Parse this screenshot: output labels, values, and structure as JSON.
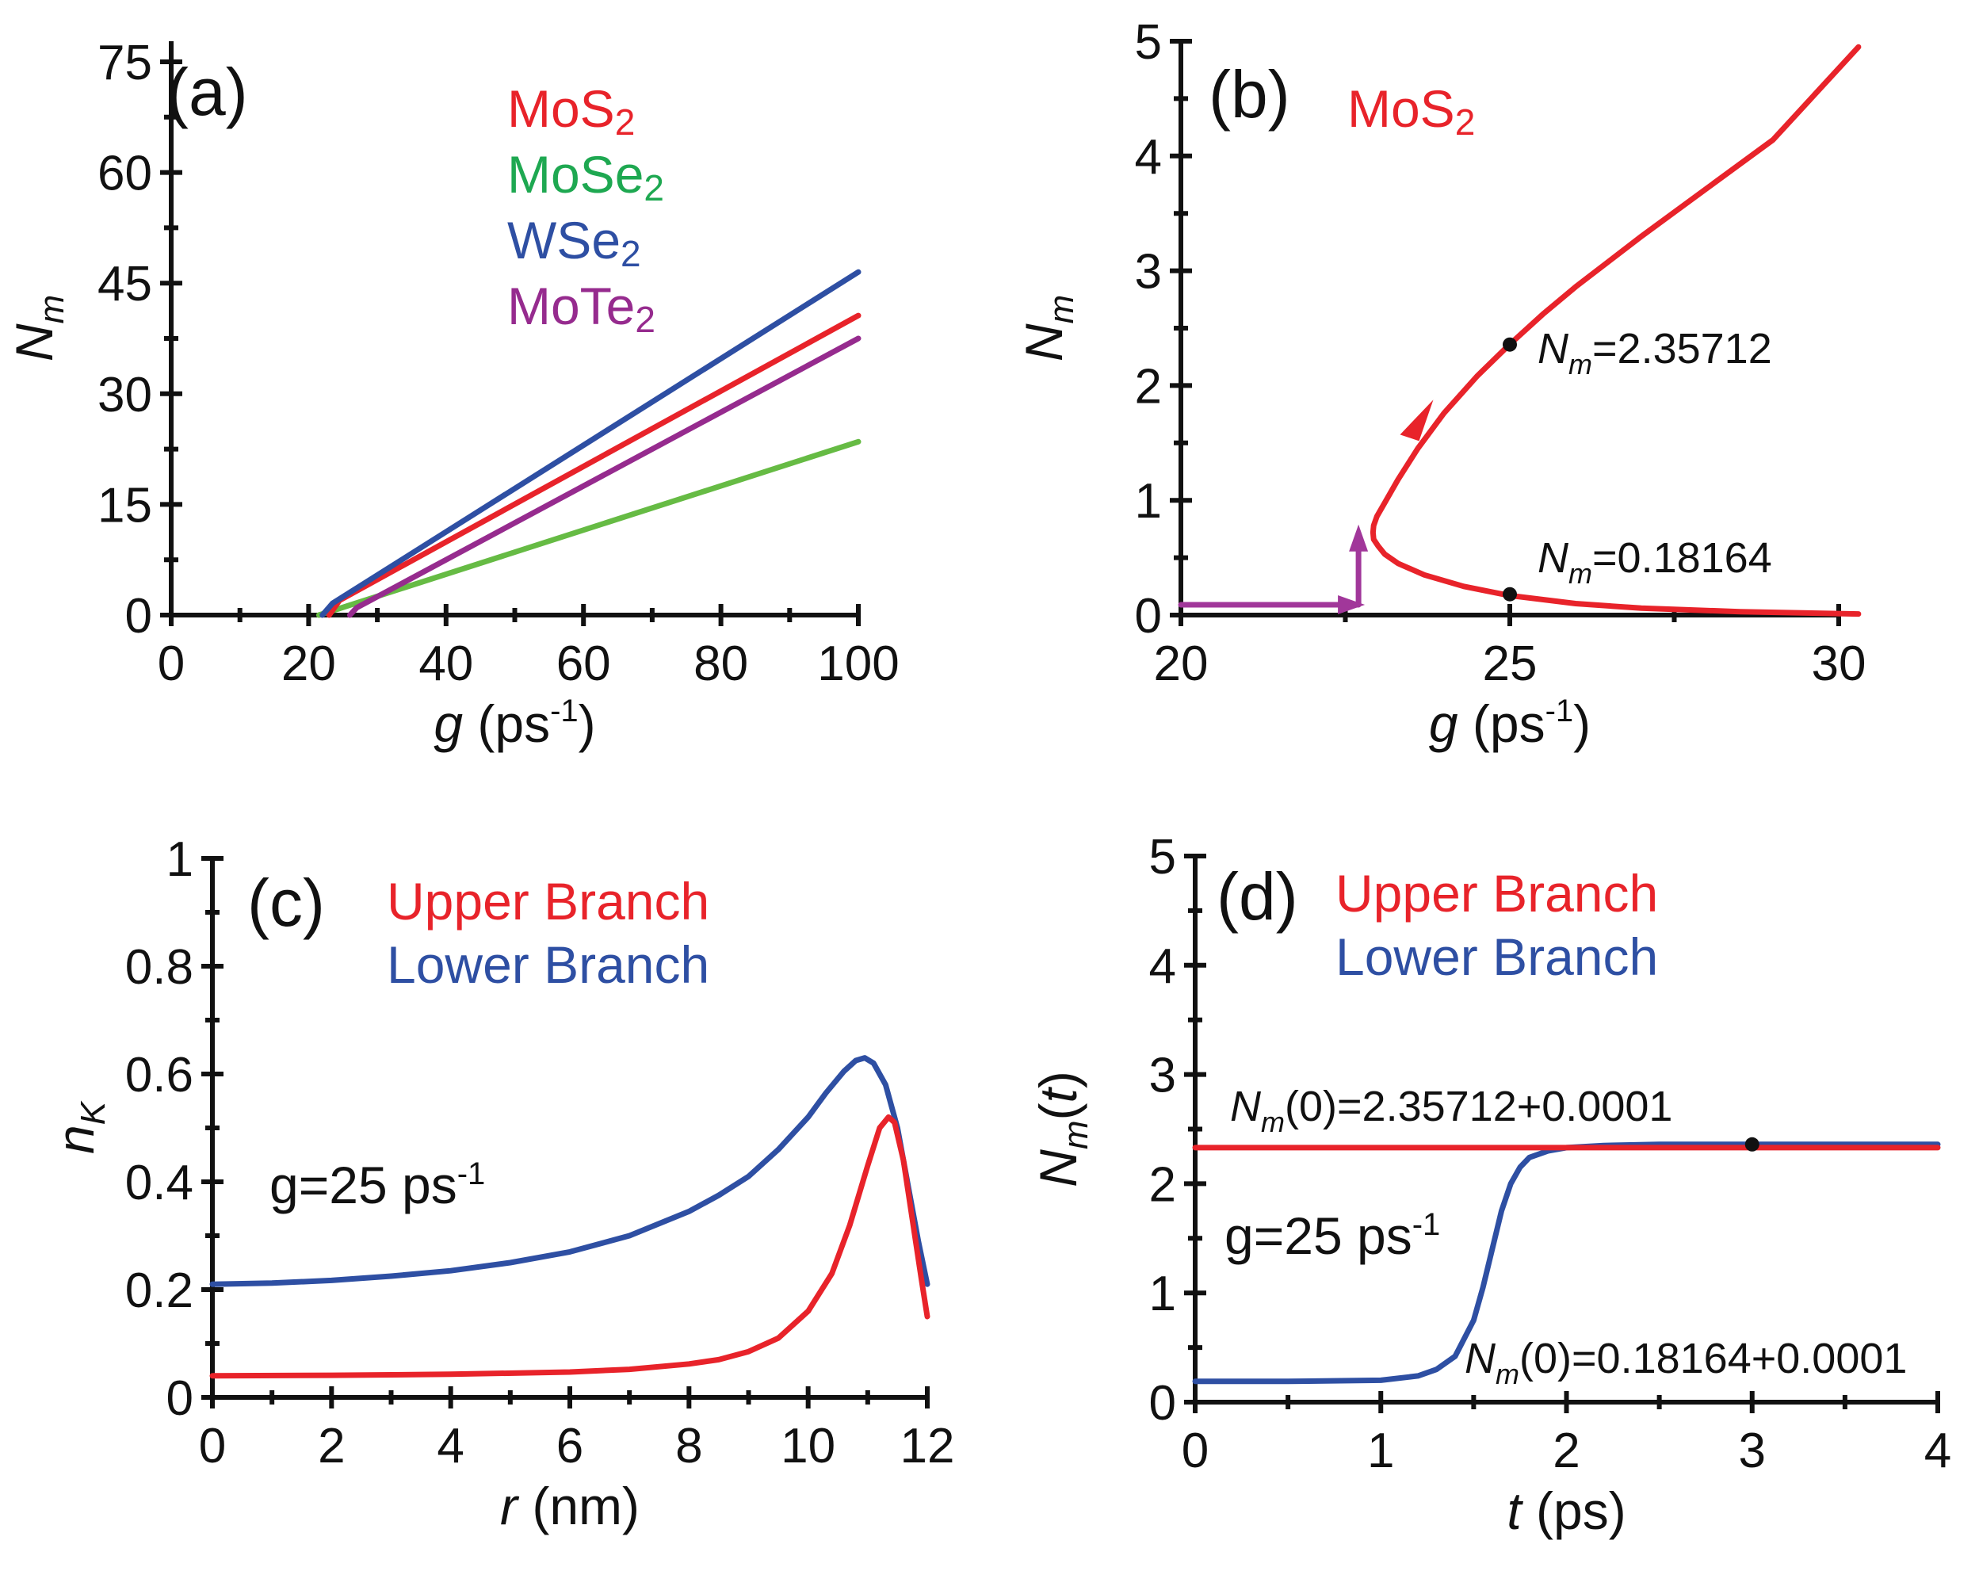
{
  "colors": {
    "red": "#e8232a",
    "green": "#66bb44",
    "green_text": "#1ea851",
    "blue": "#2e4fa3",
    "purple": "#962b8e",
    "magenta": "#a1379a",
    "black": "#111111"
  },
  "chart_data": [
    {
      "panel": "a",
      "type": "line",
      "panel_label": "(a)",
      "xlabel": "g",
      "xlabel_unit": "(ps",
      "xlabel_exp": "-1",
      "xlabel_close": ")",
      "ylabel": "N",
      "ylabel_sub": "m",
      "xlim": [
        0,
        100
      ],
      "ylim": [
        0,
        77
      ],
      "xticks": [
        0,
        20,
        40,
        60,
        80,
        100
      ],
      "xtick_labels": [
        "0",
        "20",
        "40",
        "60",
        "80",
        "100"
      ],
      "yticks": [
        0,
        15,
        30,
        45,
        60,
        75
      ],
      "ytick_labels": [
        "0",
        "15",
        "30",
        "45",
        "60",
        "75"
      ],
      "legend": [
        {
          "base": "MoS",
          "sub": "2",
          "color_key": "red"
        },
        {
          "base": "MoSe",
          "sub": "2",
          "color_key": "green_text"
        },
        {
          "base": "WSe",
          "sub": "2",
          "color_key": "blue"
        },
        {
          "base": "MoTe",
          "sub": "2",
          "color_key": "purple"
        }
      ],
      "series": [
        {
          "name": "MoSe2",
          "color_key": "green",
          "x": [
            21.5,
            100
          ],
          "y": [
            0,
            23.5
          ]
        },
        {
          "name": "MoTe2",
          "color_key": "purple",
          "x": [
            26,
            27,
            100
          ],
          "y": [
            0,
            1,
            37.5
          ]
        },
        {
          "name": "MoS2",
          "color_key": "red",
          "x": [
            23,
            24.5,
            100
          ],
          "y": [
            0,
            2,
            40.6
          ]
        },
        {
          "name": "WSe2",
          "color_key": "blue",
          "x": [
            22,
            23.5,
            100
          ],
          "y": [
            0,
            1.6,
            46.5
          ]
        }
      ]
    },
    {
      "panel": "b",
      "type": "line",
      "panel_label": "(b)",
      "title": "MoS₂",
      "xlabel": "g",
      "xlabel_unit": "(ps",
      "xlabel_exp": "-1",
      "xlabel_close": ")",
      "ylabel": "N",
      "ylabel_sub": "m",
      "xlim": [
        20,
        30.3
      ],
      "ylim": [
        0,
        5
      ],
      "xticks": [
        20,
        25,
        30
      ],
      "xtick_labels": [
        "20",
        "25",
        "30"
      ],
      "yticks": [
        0,
        1,
        2,
        3,
        4,
        5
      ],
      "ytick_labels": [
        "0",
        "1",
        "2",
        "3",
        "4",
        "5"
      ],
      "series": [
        {
          "name": "MoS2 bifurcation",
          "color_key": "red",
          "x": [
            30.3,
            28.5,
            27,
            26,
            25,
            24.3,
            23.7,
            23.3,
            23.1,
            23.0,
            22.93,
            22.92,
            22.93,
            22.98,
            23.1,
            23.3,
            23.6,
            24.0,
            24.5,
            25.0,
            25.5,
            26,
            27,
            28,
            29,
            30.3
          ],
          "y": [
            0.01,
            0.03,
            0.06,
            0.1,
            0.17,
            0.25,
            0.35,
            0.45,
            0.53,
            0.6,
            0.66,
            0.72,
            0.78,
            0.86,
            0.98,
            1.18,
            1.45,
            1.76,
            2.08,
            2.36,
            2.62,
            2.86,
            3.3,
            3.72,
            4.14,
            4.95
          ]
        },
        {
          "name": "sweep path",
          "color_key": "magenta",
          "x": [
            20,
            22.7,
            22.7,
            22.7
          ],
          "y": [
            0.09,
            0.09,
            0.09,
            0.7
          ]
        }
      ],
      "points": [
        {
          "x": 25,
          "y": 2.35712
        },
        {
          "x": 25,
          "y": 0.18164
        }
      ],
      "annotations": [
        {
          "base": "N",
          "sub": "m",
          "rest": "=2.35712"
        },
        {
          "base": "N",
          "sub": "m",
          "rest": "=0.18164"
        }
      ]
    },
    {
      "panel": "c",
      "type": "line",
      "panel_label": "(c)",
      "xlabel": "r",
      "xlabel_unit": "(nm)",
      "ylabel": "n",
      "ylabel_sub": "K",
      "xlim": [
        0,
        12
      ],
      "ylim": [
        0,
        1
      ],
      "xticks": [
        0,
        2,
        4,
        6,
        8,
        10,
        12
      ],
      "xtick_labels": [
        "0",
        "2",
        "4",
        "6",
        "8",
        "10",
        "12"
      ],
      "yticks": [
        0,
        0.2,
        0.4,
        0.6,
        0.8,
        1
      ],
      "ytick_labels": [
        "0",
        "0.2",
        "0.4",
        "0.6",
        "0.8",
        "1"
      ],
      "legend": [
        {
          "label": "Upper Branch",
          "color_key": "red"
        },
        {
          "label": "Lower Branch",
          "color_key": "blue"
        }
      ],
      "note": {
        "text": "g=25 ps",
        "exp": "-1"
      },
      "series": [
        {
          "name": "Lower Branch",
          "color_key": "blue",
          "x": [
            0,
            1,
            2,
            3,
            4,
            5,
            6,
            7,
            8,
            8.5,
            9,
            9.5,
            10,
            10.3,
            10.6,
            10.8,
            10.95,
            11.1,
            11.3,
            11.5,
            11.7,
            11.85,
            12
          ],
          "y": [
            0.21,
            0.212,
            0.217,
            0.225,
            0.235,
            0.25,
            0.27,
            0.3,
            0.345,
            0.375,
            0.41,
            0.46,
            0.52,
            0.565,
            0.605,
            0.625,
            0.63,
            0.62,
            0.58,
            0.5,
            0.38,
            0.29,
            0.21
          ]
        },
        {
          "name": "Upper Branch",
          "color_key": "red",
          "x": [
            0,
            2,
            4,
            6,
            7,
            8,
            8.5,
            9,
            9.5,
            10,
            10.4,
            10.7,
            11.0,
            11.2,
            11.35,
            11.45,
            11.6,
            11.75,
            11.9,
            12
          ],
          "y": [
            0.04,
            0.041,
            0.043,
            0.047,
            0.052,
            0.062,
            0.07,
            0.085,
            0.11,
            0.16,
            0.23,
            0.32,
            0.43,
            0.5,
            0.52,
            0.51,
            0.44,
            0.33,
            0.22,
            0.15
          ]
        }
      ]
    },
    {
      "panel": "d",
      "type": "line",
      "panel_label": "(d)",
      "xlabel": "t",
      "xlabel_unit": "(ps)",
      "ylabel": "N",
      "ylabel_sub": "m",
      "ylabel_tail": "(t)",
      "xlim": [
        0,
        4
      ],
      "ylim": [
        0,
        5
      ],
      "xticks": [
        0,
        1,
        2,
        3,
        4
      ],
      "xtick_labels": [
        "0",
        "1",
        "2",
        "3",
        "4"
      ],
      "yticks": [
        0,
        1,
        2,
        3,
        4,
        5
      ],
      "ytick_labels": [
        "0",
        "1",
        "2",
        "3",
        "4",
        "5"
      ],
      "legend": [
        {
          "label": "Upper Branch",
          "color_key": "red"
        },
        {
          "label": "Lower Branch",
          "color_key": "blue"
        }
      ],
      "note": {
        "text": "g=25 ps",
        "exp": "-1"
      },
      "series": [
        {
          "name": "Lower Branch",
          "color_key": "blue",
          "x": [
            0,
            0.5,
            1.0,
            1.2,
            1.3,
            1.4,
            1.5,
            1.55,
            1.6,
            1.65,
            1.7,
            1.75,
            1.8,
            1.9,
            2.0,
            2.2,
            2.5,
            3.0,
            3.5,
            4.0
          ],
          "y": [
            0.19,
            0.19,
            0.2,
            0.24,
            0.3,
            0.42,
            0.75,
            1.05,
            1.4,
            1.75,
            2.0,
            2.15,
            2.24,
            2.3,
            2.33,
            2.35,
            2.36,
            2.36,
            2.36,
            2.36
          ]
        },
        {
          "name": "Upper Branch",
          "color_key": "red",
          "x": [
            0,
            4
          ],
          "y": [
            2.33,
            2.33
          ]
        }
      ],
      "points": [
        {
          "x": 3,
          "y": 2.36
        }
      ],
      "annotations": [
        {
          "base": "N",
          "sub": "m",
          "rest": "(0)=2.35712+0.0001"
        },
        {
          "base": "N",
          "sub": "m",
          "rest": "(0)=0.18164+0.0001"
        }
      ]
    }
  ]
}
